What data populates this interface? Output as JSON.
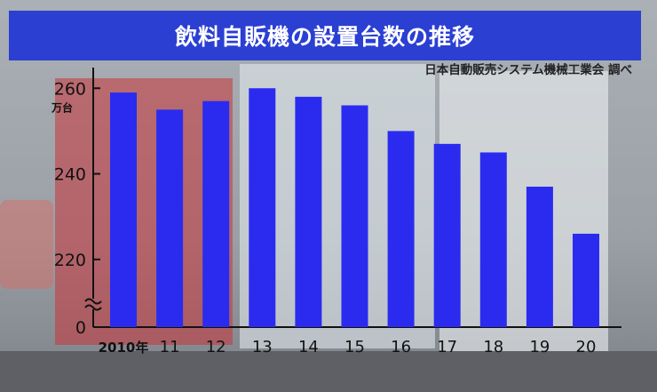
{
  "header": {
    "title": "飲料自販機の設置台数の推移",
    "source": "日本自動販売システム機械工業会 調べ"
  },
  "colors": {
    "bar": "#2b2bf0",
    "title_bg": "#2b3fd2",
    "axis": "#111111"
  },
  "chart_data": {
    "type": "bar",
    "title": "飲料自販機の設置台数の推移",
    "unit": "万台",
    "categories": [
      "2010年",
      "11",
      "12",
      "13",
      "14",
      "15",
      "16",
      "17",
      "18",
      "19",
      "20"
    ],
    "values": [
      259,
      255,
      257,
      260,
      258,
      256,
      250,
      247,
      245,
      237,
      226
    ],
    "yticks": [
      220,
      240,
      260
    ],
    "ylim": [
      210,
      264
    ],
    "axis_break": true,
    "baseline_label": "0",
    "grid": false,
    "legend": "none"
  }
}
